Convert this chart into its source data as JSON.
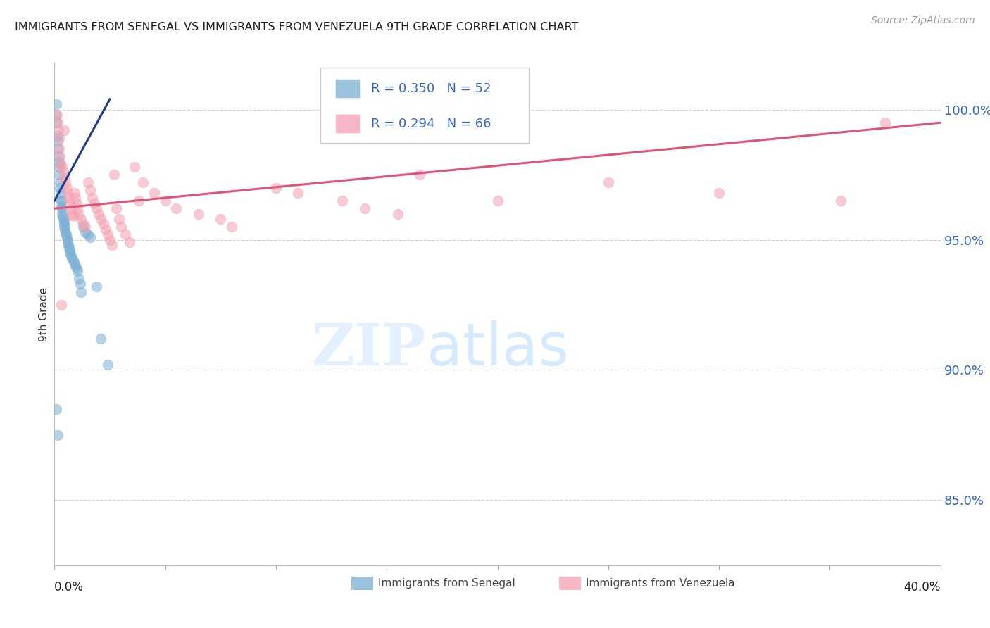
{
  "title": "IMMIGRANTS FROM SENEGAL VS IMMIGRANTS FROM VENEZUELA 9TH GRADE CORRELATION CHART",
  "source": "Source: ZipAtlas.com",
  "ylabel": "9th Grade",
  "x_min": 0.0,
  "x_max": 40.0,
  "y_min": 82.5,
  "y_max": 101.8,
  "y_ticks": [
    85.0,
    90.0,
    95.0,
    100.0
  ],
  "legend1_r": "0.350",
  "legend1_n": "52",
  "legend2_r": "0.294",
  "legend2_n": "66",
  "blue_color": "#7BAFD4",
  "pink_color": "#F4A0B0",
  "blue_line_color": "#1F3D8C",
  "pink_line_color": "#E05575",
  "blue_line_x0": 0.0,
  "blue_line_y0": 96.5,
  "blue_line_x1": 2.5,
  "blue_line_y1": 100.4,
  "pink_line_x0": 0.0,
  "pink_line_y0": 96.2,
  "pink_line_x1": 40.0,
  "pink_line_y1": 99.5,
  "senegal_x": [
    0.05,
    0.08,
    0.1,
    0.12,
    0.15,
    0.15,
    0.18,
    0.2,
    0.22,
    0.22,
    0.25,
    0.25,
    0.28,
    0.3,
    0.3,
    0.32,
    0.35,
    0.35,
    0.38,
    0.4,
    0.42,
    0.45,
    0.45,
    0.48,
    0.5,
    0.52,
    0.55,
    0.58,
    0.6,
    0.62,
    0.65,
    0.68,
    0.7,
    0.75,
    0.8,
    0.85,
    0.9,
    0.95,
    1.0,
    1.05,
    1.1,
    1.15,
    1.2,
    1.3,
    1.4,
    1.5,
    1.6,
    1.9,
    2.1,
    2.4,
    0.1,
    0.15
  ],
  "senegal_y": [
    99.8,
    100.2,
    99.5,
    99.0,
    98.8,
    98.5,
    98.2,
    98.0,
    97.8,
    97.5,
    97.2,
    97.0,
    96.8,
    96.5,
    96.5,
    96.3,
    96.2,
    96.0,
    95.9,
    95.8,
    95.7,
    95.6,
    95.5,
    95.4,
    95.3,
    95.2,
    95.1,
    95.0,
    94.9,
    94.8,
    94.7,
    94.6,
    94.5,
    94.4,
    94.3,
    94.2,
    94.1,
    94.0,
    93.9,
    93.8,
    93.5,
    93.3,
    93.0,
    95.5,
    95.3,
    95.2,
    95.1,
    93.2,
    91.2,
    90.2,
    88.5,
    87.5
  ],
  "venezuela_x": [
    0.12,
    0.15,
    0.18,
    0.2,
    0.22,
    0.25,
    0.28,
    0.35,
    0.4,
    0.45,
    0.5,
    0.55,
    0.6,
    0.65,
    0.7,
    0.75,
    0.8,
    0.85,
    0.9,
    0.95,
    1.0,
    1.05,
    1.1,
    1.2,
    1.3,
    1.4,
    1.5,
    1.6,
    1.7,
    1.8,
    1.9,
    2.0,
    2.1,
    2.2,
    2.3,
    2.4,
    2.5,
    2.6,
    2.7,
    2.8,
    2.9,
    3.0,
    3.2,
    3.4,
    3.6,
    3.8,
    4.0,
    4.5,
    5.0,
    5.5,
    6.5,
    7.5,
    8.0,
    10.0,
    11.0,
    13.0,
    14.0,
    15.5,
    16.5,
    20.0,
    25.0,
    30.0,
    35.5,
    37.5,
    0.3,
    0.42
  ],
  "venezuela_y": [
    99.8,
    99.5,
    99.2,
    98.9,
    98.5,
    98.2,
    97.9,
    97.8,
    97.6,
    97.4,
    97.2,
    97.0,
    96.8,
    96.6,
    96.4,
    96.2,
    96.0,
    95.9,
    96.8,
    96.6,
    96.4,
    96.2,
    96.0,
    95.8,
    95.6,
    95.5,
    97.2,
    96.9,
    96.6,
    96.4,
    96.2,
    96.0,
    95.8,
    95.6,
    95.4,
    95.2,
    95.0,
    94.8,
    97.5,
    96.2,
    95.8,
    95.5,
    95.2,
    94.9,
    97.8,
    96.5,
    97.2,
    96.8,
    96.5,
    96.2,
    96.0,
    95.8,
    95.5,
    97.0,
    96.8,
    96.5,
    96.2,
    96.0,
    97.5,
    96.5,
    97.2,
    96.8,
    96.5,
    99.5,
    92.5,
    99.2
  ]
}
